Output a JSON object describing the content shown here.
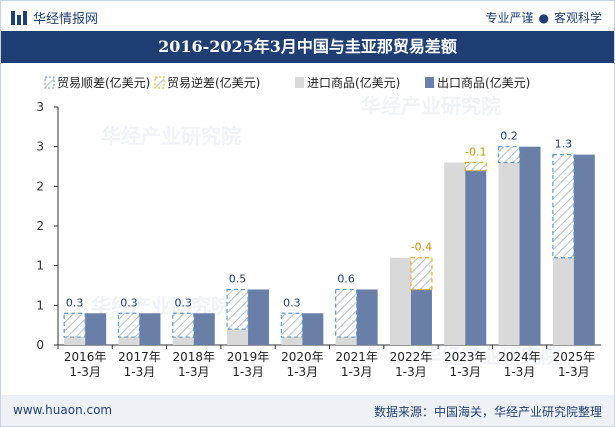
{
  "header": {
    "brand": "华经情报网",
    "tag_left": "专业严谨",
    "tag_right": "客观科学"
  },
  "title": "2016-2025年3月中国与圭亚那贸易差额",
  "footer": {
    "url": "www.huaon.com",
    "source": "数据来源：中国海关，华经产业研究院整理"
  },
  "colors": {
    "title_bg": "#1f3f74",
    "import": "#d9d9d9",
    "export": "#6a7fa8",
    "surplus_stroke": "#5b9bd5",
    "deficit_stroke": "#f0b400"
  },
  "chart_data": {
    "type": "bar",
    "categories": [
      "2016年\n1-3月",
      "2017年\n1-3月",
      "2018年\n1-3月",
      "2019年\n1-3月",
      "2020年\n1-3月",
      "2021年\n1-3月",
      "2022年\n1-3月",
      "2023年\n1-3月",
      "2024年\n1-3月",
      "2025年\n1-3月"
    ],
    "series": [
      {
        "name": "贸易顺差(亿美元)",
        "values": [
          0.3,
          0.3,
          0.3,
          0.5,
          0.3,
          0.6,
          null,
          null,
          0.2,
          1.3
        ]
      },
      {
        "name": "贸易逆差(亿美元)",
        "values": [
          null,
          null,
          null,
          null,
          null,
          null,
          -0.4,
          -0.1,
          null,
          null
        ]
      },
      {
        "name": "进口商品(亿美元)",
        "values": [
          0.1,
          0.1,
          0.1,
          0.2,
          0.1,
          0.1,
          1.1,
          2.3,
          2.3,
          1.1
        ]
      },
      {
        "name": "出口商品(亿美元)",
        "values": [
          0.4,
          0.4,
          0.4,
          0.7,
          0.4,
          0.7,
          0.7,
          2.2,
          2.5,
          2.4
        ]
      }
    ],
    "balance_labels": [
      "0.3",
      "0.3",
      "0.3",
      "0.5",
      "0.3",
      "0.6",
      "-0.4",
      "-0.1",
      "0.2",
      "1.3"
    ],
    "y_ticks": [
      "0",
      "1",
      "1",
      "2",
      "2",
      "3",
      "3"
    ],
    "ylim": [
      0,
      3
    ],
    "legend_position": "top-left",
    "grid": false
  }
}
